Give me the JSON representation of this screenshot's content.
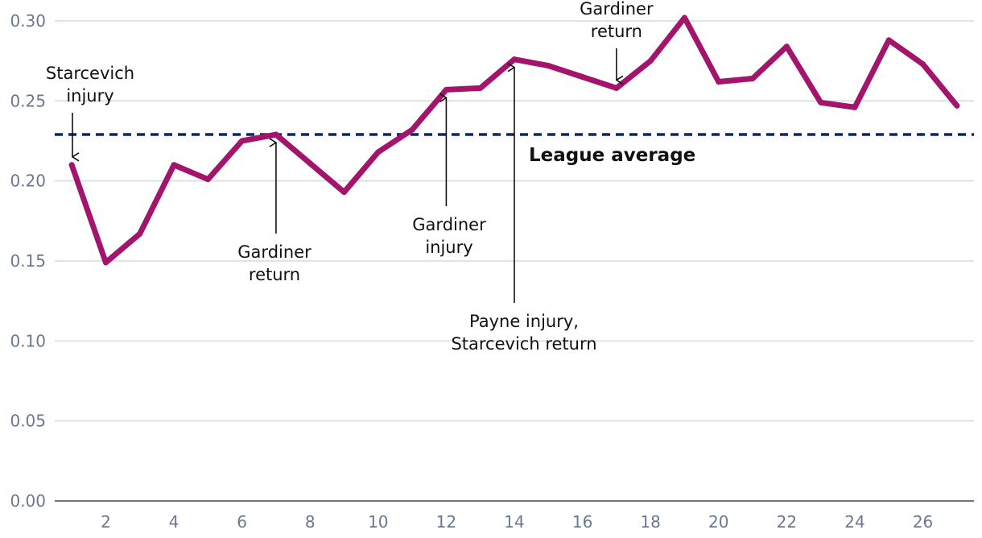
{
  "chart_data": {
    "type": "line",
    "x": [
      1,
      2,
      3,
      4,
      5,
      6,
      7,
      8,
      9,
      10,
      11,
      12,
      13,
      14,
      15,
      16,
      17,
      18,
      19,
      20,
      21,
      22,
      23,
      24,
      25,
      26,
      27
    ],
    "series": [
      {
        "values": [
          0.21,
          0.149,
          0.167,
          0.21,
          0.201,
          0.225,
          0.229,
          0.211,
          0.193,
          0.218,
          0.232,
          0.257,
          0.258,
          0.276,
          0.272,
          0.265,
          0.258,
          0.275,
          0.302,
          0.262,
          0.264,
          0.284,
          0.249,
          0.246,
          0.288,
          0.273,
          0.247
        ],
        "color": "#a3156c"
      }
    ],
    "xticks": [
      2,
      4,
      6,
      8,
      10,
      12,
      14,
      16,
      18,
      20,
      22,
      24,
      26
    ],
    "yticks": [
      0.0,
      0.05,
      0.1,
      0.15,
      0.2,
      0.25,
      0.3
    ],
    "ytick_labels": [
      "0.00",
      "0.05",
      "0.10",
      "0.15",
      "0.20",
      "0.25",
      "0.30"
    ],
    "xlim": [
      0.5,
      27.5
    ],
    "ylim": [
      0,
      0.302
    ],
    "grid": true,
    "reference_line": {
      "value": 0.229,
      "label": "League average",
      "color": "#0b2570"
    },
    "annotations": [
      {
        "lines": [
          "Starcevich",
          "injury"
        ],
        "x": 1,
        "text_position": "above"
      },
      {
        "lines": [
          "Gardiner",
          "return"
        ],
        "x": 7,
        "text_position": "below"
      },
      {
        "lines": [
          "Gardiner",
          "injury"
        ],
        "x": 12,
        "text_position": "below"
      },
      {
        "lines": [
          "Payne injury,",
          "Starcevich return"
        ],
        "x": 14,
        "text_position": "below"
      },
      {
        "lines": [
          "Gardiner",
          "return"
        ],
        "x": 17,
        "text_position": "above"
      }
    ]
  }
}
